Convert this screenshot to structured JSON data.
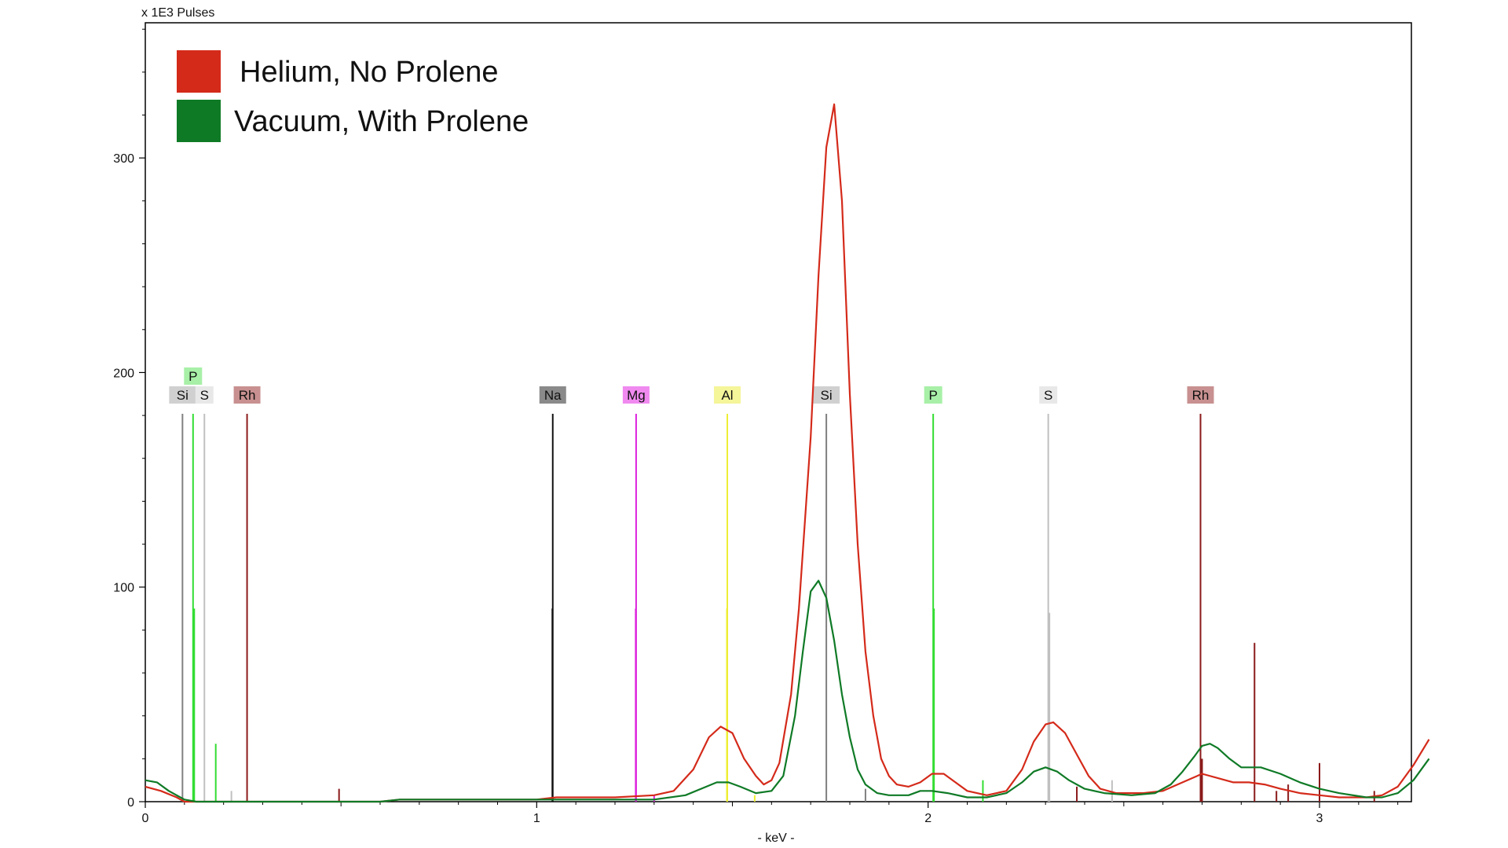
{
  "chart_data": {
    "type": "line",
    "title": "",
    "y_unit_label": "x 1E3 Pulses",
    "xlabel": "- keV -",
    "xlim": [
      0,
      3.28
    ],
    "ylim": [
      0,
      363
    ],
    "x_ticks": [
      {
        "value": 0,
        "label": "0"
      },
      {
        "value": 1,
        "label": "1"
      },
      {
        "value": 2,
        "label": "2"
      },
      {
        "value": 3,
        "label": "3"
      }
    ],
    "y_ticks": [
      {
        "value": 0,
        "label": "0"
      },
      {
        "value": 100,
        "label": "100"
      },
      {
        "value": 200,
        "label": "200"
      },
      {
        "value": 300,
        "label": "300"
      }
    ],
    "grid": false,
    "legend_position": "top-left",
    "series": [
      {
        "name": "Helium, No Prolene",
        "color": "#d42a1a",
        "points": [
          [
            0,
            7
          ],
          [
            0.04,
            5
          ],
          [
            0.08,
            2
          ],
          [
            0.1,
            0
          ],
          [
            0.6,
            0
          ],
          [
            0.65,
            1
          ],
          [
            1.0,
            1
          ],
          [
            1.05,
            2
          ],
          [
            1.2,
            2
          ],
          [
            1.3,
            3
          ],
          [
            1.35,
            5
          ],
          [
            1.4,
            15
          ],
          [
            1.44,
            30
          ],
          [
            1.47,
            35
          ],
          [
            1.5,
            32
          ],
          [
            1.53,
            20
          ],
          [
            1.56,
            12
          ],
          [
            1.58,
            8
          ],
          [
            1.6,
            10
          ],
          [
            1.62,
            18
          ],
          [
            1.65,
            50
          ],
          [
            1.67,
            90
          ],
          [
            1.7,
            170
          ],
          [
            1.72,
            245
          ],
          [
            1.74,
            305
          ],
          [
            1.76,
            325
          ],
          [
            1.78,
            280
          ],
          [
            1.8,
            190
          ],
          [
            1.82,
            120
          ],
          [
            1.84,
            70
          ],
          [
            1.86,
            40
          ],
          [
            1.88,
            20
          ],
          [
            1.9,
            12
          ],
          [
            1.92,
            8
          ],
          [
            1.95,
            7
          ],
          [
            1.98,
            9
          ],
          [
            2.01,
            13
          ],
          [
            2.04,
            13
          ],
          [
            2.07,
            9
          ],
          [
            2.1,
            5
          ],
          [
            2.15,
            3
          ],
          [
            2.2,
            5
          ],
          [
            2.24,
            15
          ],
          [
            2.27,
            28
          ],
          [
            2.3,
            36
          ],
          [
            2.32,
            37
          ],
          [
            2.35,
            32
          ],
          [
            2.38,
            22
          ],
          [
            2.41,
            12
          ],
          [
            2.44,
            6
          ],
          [
            2.48,
            4
          ],
          [
            2.55,
            4
          ],
          [
            2.6,
            5
          ],
          [
            2.65,
            9
          ],
          [
            2.7,
            13
          ],
          [
            2.74,
            11
          ],
          [
            2.78,
            9
          ],
          [
            2.82,
            9
          ],
          [
            2.86,
            8
          ],
          [
            2.9,
            6
          ],
          [
            2.95,
            4
          ],
          [
            3.0,
            3
          ],
          [
            3.05,
            2
          ],
          [
            3.12,
            2
          ],
          [
            3.16,
            3
          ],
          [
            3.2,
            7
          ],
          [
            3.24,
            17
          ],
          [
            3.28,
            29
          ]
        ]
      },
      {
        "name": "Vacuum, With Prolene",
        "color": "#0f7a26",
        "points": [
          [
            0,
            10
          ],
          [
            0.03,
            9
          ],
          [
            0.06,
            5
          ],
          [
            0.1,
            1
          ],
          [
            0.13,
            0
          ],
          [
            0.6,
            0
          ],
          [
            0.65,
            1
          ],
          [
            1.0,
            1
          ],
          [
            1.05,
            1
          ],
          [
            1.3,
            1
          ],
          [
            1.38,
            3
          ],
          [
            1.42,
            6
          ],
          [
            1.46,
            9
          ],
          [
            1.49,
            9
          ],
          [
            1.52,
            7
          ],
          [
            1.56,
            4
          ],
          [
            1.6,
            5
          ],
          [
            1.63,
            12
          ],
          [
            1.66,
            40
          ],
          [
            1.68,
            70
          ],
          [
            1.7,
            98
          ],
          [
            1.72,
            103
          ],
          [
            1.74,
            95
          ],
          [
            1.76,
            75
          ],
          [
            1.78,
            50
          ],
          [
            1.8,
            30
          ],
          [
            1.82,
            15
          ],
          [
            1.84,
            8
          ],
          [
            1.87,
            4
          ],
          [
            1.9,
            3
          ],
          [
            1.95,
            3
          ],
          [
            1.98,
            5
          ],
          [
            2.01,
            5
          ],
          [
            2.05,
            4
          ],
          [
            2.1,
            2
          ],
          [
            2.15,
            2
          ],
          [
            2.2,
            4
          ],
          [
            2.24,
            9
          ],
          [
            2.27,
            14
          ],
          [
            2.3,
            16
          ],
          [
            2.33,
            14
          ],
          [
            2.36,
            10
          ],
          [
            2.4,
            6
          ],
          [
            2.45,
            4
          ],
          [
            2.52,
            3
          ],
          [
            2.58,
            4
          ],
          [
            2.62,
            8
          ],
          [
            2.65,
            14
          ],
          [
            2.68,
            21
          ],
          [
            2.7,
            26
          ],
          [
            2.72,
            27
          ],
          [
            2.74,
            25
          ],
          [
            2.77,
            20
          ],
          [
            2.8,
            16
          ],
          [
            2.85,
            16
          ],
          [
            2.9,
            13
          ],
          [
            2.95,
            9
          ],
          [
            3.0,
            6
          ],
          [
            3.05,
            4
          ],
          [
            3.12,
            2
          ],
          [
            3.16,
            2
          ],
          [
            3.2,
            4
          ],
          [
            3.24,
            10
          ],
          [
            3.28,
            20
          ]
        ]
      }
    ],
    "element_markers": [
      {
        "element": "Si",
        "kev": 0.095,
        "row": 0,
        "color": "#808080",
        "tag": "#d0d0d0"
      },
      {
        "element": "P",
        "kev": 0.122,
        "row": 1,
        "color": "#33dd33",
        "tag": "#a8f0a8"
      },
      {
        "element": "S",
        "kev": 0.151,
        "row": 0,
        "color": "#c0c0c0",
        "tag": "#e8e8e8"
      },
      {
        "element": "Rh",
        "kev": 0.26,
        "row": 0,
        "color": "#8b1a1a",
        "tag": "#c89090"
      },
      {
        "element": "Na",
        "kev": 1.041,
        "row": 0,
        "color": "#111111",
        "tag": "#8a8a8a"
      },
      {
        "element": "Mg",
        "kev": 1.254,
        "row": 0,
        "color": "#dd22dd",
        "tag": "#f08af0"
      },
      {
        "element": "Al",
        "kev": 1.487,
        "row": 0,
        "color": "#eeee33",
        "tag": "#f5f59a"
      },
      {
        "element": "Si",
        "kev": 1.74,
        "row": 0,
        "color": "#808080",
        "tag": "#d0d0d0"
      },
      {
        "element": "P",
        "kev": 2.013,
        "row": 0,
        "color": "#33dd33",
        "tag": "#a8f0a8"
      },
      {
        "element": "S",
        "kev": 2.307,
        "row": 0,
        "color": "#c0c0c0",
        "tag": "#e8e8e8"
      },
      {
        "element": "Rh",
        "kev": 2.696,
        "row": 0,
        "color": "#8b1a1a",
        "tag": "#c89090"
      }
    ],
    "minor_lines": [
      {
        "kev": 0.125,
        "height": 90,
        "color": "#33dd33"
      },
      {
        "kev": 0.18,
        "height": 27,
        "color": "#33dd33"
      },
      {
        "kev": 0.22,
        "height": 5,
        "color": "#c0c0c0"
      },
      {
        "kev": 0.495,
        "height": 6,
        "color": "#8b1a1a"
      },
      {
        "kev": 1.04,
        "height": 90,
        "color": "#111111"
      },
      {
        "kev": 1.253,
        "height": 90,
        "color": "#dd22dd"
      },
      {
        "kev": 1.3,
        "height": 3,
        "color": "#dd22dd"
      },
      {
        "kev": 1.486,
        "height": 90,
        "color": "#eeee33"
      },
      {
        "kev": 1.557,
        "height": 3,
        "color": "#eeee33"
      },
      {
        "kev": 1.84,
        "height": 6,
        "color": "#808080"
      },
      {
        "kev": 2.015,
        "height": 90,
        "color": "#33dd33"
      },
      {
        "kev": 2.14,
        "height": 10,
        "color": "#33dd33"
      },
      {
        "kev": 2.31,
        "height": 88,
        "color": "#c0c0c0"
      },
      {
        "kev": 2.47,
        "height": 10,
        "color": "#c0c0c0"
      },
      {
        "kev": 2.47,
        "height": 4,
        "color": "#c0c0c0"
      },
      {
        "kev": 2.38,
        "height": 7,
        "color": "#8b1a1a"
      },
      {
        "kev": 2.7,
        "height": 20,
        "color": "#8b1a1a"
      },
      {
        "kev": 2.834,
        "height": 74,
        "color": "#8b1a1a"
      },
      {
        "kev": 2.89,
        "height": 5,
        "color": "#8b1a1a"
      },
      {
        "kev": 2.92,
        "height": 8,
        "color": "#8b1a1a"
      },
      {
        "kev": 3.0,
        "height": 18,
        "color": "#8b1a1a"
      },
      {
        "kev": 3.14,
        "height": 5,
        "color": "#8b1a1a"
      }
    ]
  }
}
